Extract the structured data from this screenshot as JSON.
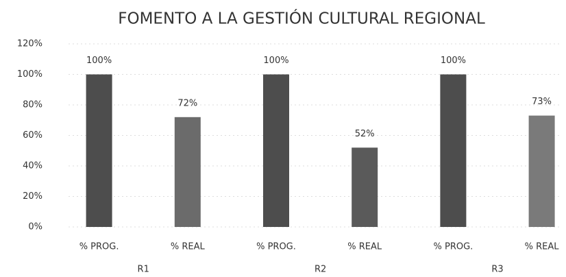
{
  "chart_data": {
    "type": "bar",
    "title": "FOMENTO A LA GESTIÓN CULTURAL REGIONAL",
    "categories": [
      "% PROG.",
      "% REAL",
      "% PROG.",
      "% REAL",
      "% PROG.",
      "% REAL"
    ],
    "groups": [
      "R1",
      "R2",
      "R3"
    ],
    "values": [
      100,
      72,
      100,
      52,
      100,
      73
    ],
    "value_labels": [
      "100%",
      "72%",
      "100%",
      "52%",
      "100%",
      "73%"
    ],
    "colors": [
      "#4d4d4d",
      "#6b6b6b",
      "#4d4d4d",
      "#5a5a5a",
      "#4d4d4d",
      "#7a7a7a"
    ],
    "ylim": [
      0,
      120
    ],
    "yticks": [
      {
        "value": 0,
        "label": "0%"
      },
      {
        "value": 20,
        "label": "20%"
      },
      {
        "value": 40,
        "label": "40%"
      },
      {
        "value": 60,
        "label": "60%"
      },
      {
        "value": 80,
        "label": "80%"
      },
      {
        "value": 100,
        "label": "100%"
      },
      {
        "value": 120,
        "label": "120%"
      }
    ],
    "grid": true
  }
}
